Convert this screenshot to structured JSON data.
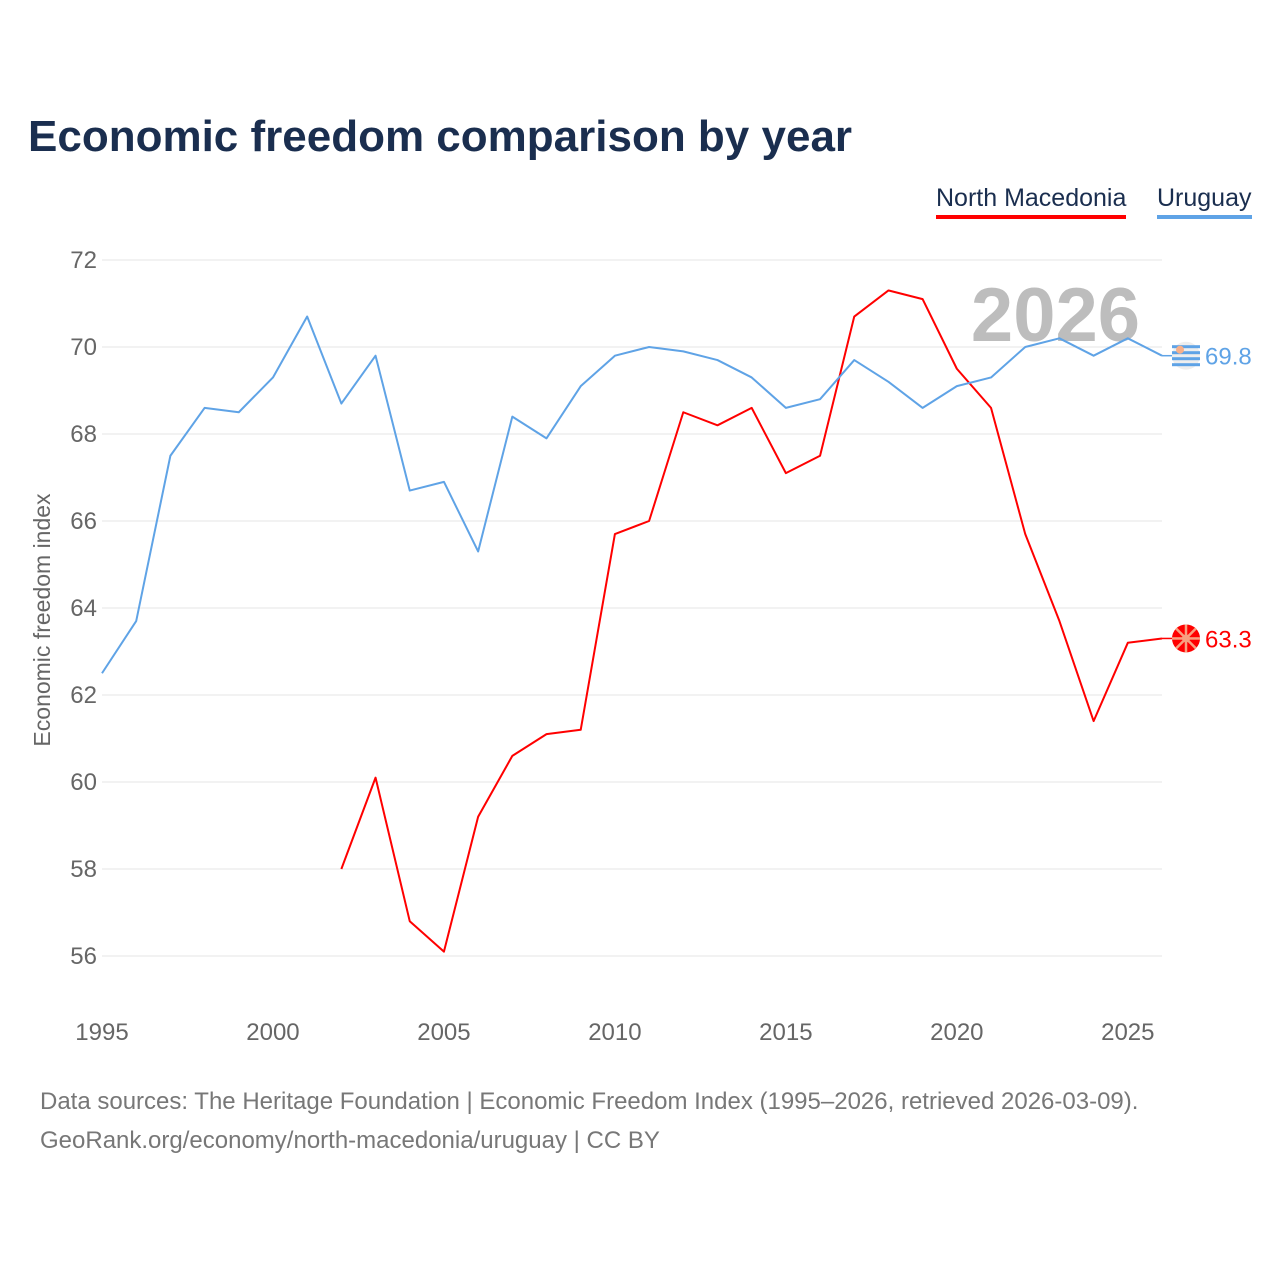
{
  "chart_data": {
    "type": "line",
    "title": "Economic freedom comparison by year",
    "xlabel": "",
    "ylabel": "Economic freedom index",
    "xlim": [
      1995,
      2026
    ],
    "ylim": [
      56,
      72
    ],
    "x_ticks": [
      1995,
      2000,
      2005,
      2010,
      2015,
      2020,
      2025
    ],
    "y_ticks": [
      56,
      58,
      60,
      62,
      64,
      66,
      68,
      70,
      72
    ],
    "grid": true,
    "legend_position": "top-right",
    "year_watermark": "2026",
    "series": [
      {
        "name": "North Macedonia",
        "color": "#ff0000",
        "end_label": "63.3",
        "flag_icon": "north-macedonia-flag-icon",
        "x": [
          2002,
          2003,
          2004,
          2005,
          2006,
          2007,
          2008,
          2009,
          2010,
          2011,
          2012,
          2013,
          2014,
          2015,
          2016,
          2017,
          2018,
          2019,
          2020,
          2021,
          2022,
          2023,
          2024,
          2025,
          2026
        ],
        "values": [
          58.0,
          60.1,
          56.8,
          56.1,
          59.2,
          60.6,
          61.1,
          61.2,
          65.7,
          66.0,
          68.5,
          68.2,
          68.6,
          67.1,
          67.5,
          70.7,
          71.3,
          71.1,
          69.5,
          68.6,
          65.7,
          63.7,
          61.4,
          63.2,
          63.3
        ]
      },
      {
        "name": "Uruguay",
        "color": "#5fa3e6",
        "end_label": "69.8",
        "flag_icon": "uruguay-flag-icon",
        "x": [
          1995,
          1996,
          1997,
          1998,
          1999,
          2000,
          2001,
          2002,
          2003,
          2004,
          2005,
          2006,
          2007,
          2008,
          2009,
          2010,
          2011,
          2012,
          2013,
          2014,
          2015,
          2016,
          2017,
          2018,
          2019,
          2020,
          2021,
          2022,
          2023,
          2024,
          2025,
          2026
        ],
        "values": [
          62.5,
          63.7,
          67.5,
          68.6,
          68.5,
          69.3,
          70.7,
          68.7,
          69.8,
          66.7,
          66.9,
          65.3,
          68.4,
          67.9,
          69.1,
          69.8,
          70.0,
          69.9,
          69.7,
          69.3,
          68.6,
          68.8,
          69.7,
          69.2,
          68.6,
          69.1,
          69.3,
          70.0,
          70.2,
          69.8,
          70.2,
          69.8
        ]
      }
    ]
  },
  "footer": {
    "line1": "Data sources: The Heritage Foundation | Economic Freedom Index (1995–2026, retrieved 2026-03-09).",
    "line2": "GeoRank.org/economy/north-macedonia/uruguay | CC BY"
  }
}
